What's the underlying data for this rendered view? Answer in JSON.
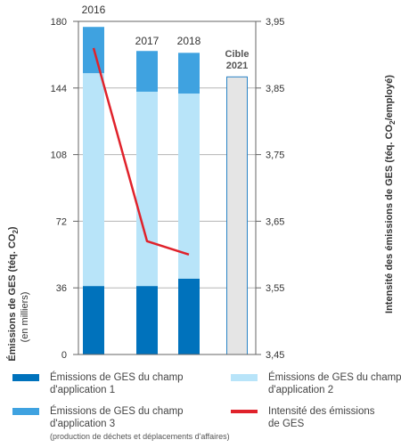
{
  "chart_data": {
    "type": "bar",
    "categories": [
      "2016",
      "2017",
      "2018",
      "Cible 2021"
    ],
    "target_label_lines": [
      "Cible",
      "2021"
    ],
    "series": [
      {
        "name": "Émissions de GES du champ d'application 1",
        "values": [
          37,
          37,
          41,
          null
        ],
        "color": "#0072bc"
      },
      {
        "name": "Émissions de GES du champ d'application 2",
        "values": [
          115,
          105,
          100,
          null
        ],
        "color": "#b8e4f9"
      },
      {
        "name": "Émissions de GES du champ d'application 3",
        "values": [
          25,
          22,
          22,
          null
        ],
        "color": "#3fa2e0"
      }
    ],
    "target_value": 150,
    "target_color": "#e5e5e5",
    "target_border": "#2a84c6",
    "intensity": {
      "name": "Intensité des émissions de GES",
      "values": [
        3.91,
        3.62,
        3.6
      ],
      "color": "#e0222b"
    },
    "left_axis": {
      "ticks": [
        0,
        36,
        72,
        108,
        144,
        180
      ],
      "ylim": [
        0,
        180
      ]
    },
    "right_axis": {
      "ticks": [
        "3,45",
        "3,55",
        "3,65",
        "3,75",
        "3,85",
        "3,95"
      ],
      "ylim": [
        3.45,
        3.95
      ]
    }
  },
  "axis": {
    "left_title": "Émissions de GES (téq. CO",
    "left_sub": "2",
    "left_title_end": ")",
    "left_unit": "(en milliers)",
    "right_title": "Intensité des émissions de GES (téq. CO",
    "right_sub": "2",
    "right_title_end": "/employé)"
  },
  "legend": {
    "scope1": [
      "Émissions de GES du champ",
      "d'application 1"
    ],
    "scope2": [
      "Émissions de GES du champ",
      "d'application 2"
    ],
    "scope3": [
      "Émissions de GES du champ",
      "d'application 3"
    ],
    "scope3_note": "(production de déchets et déplacements d'affaires)",
    "intensity": [
      "Intensité des émissions",
      "de GES"
    ]
  }
}
